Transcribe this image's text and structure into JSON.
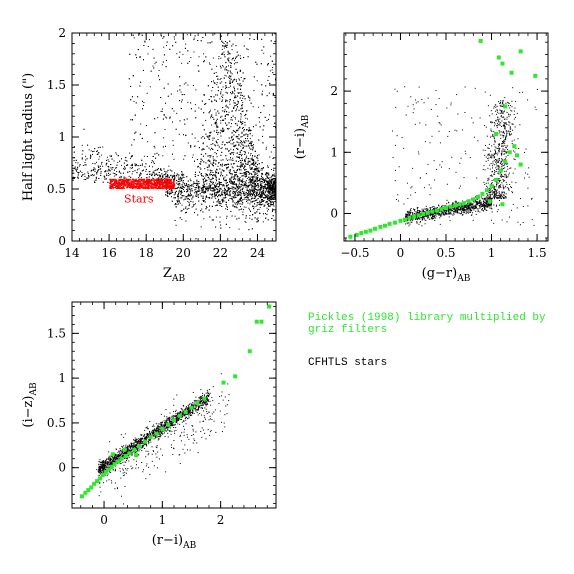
{
  "legend": {
    "pickles_text": "Pickles (1998) library multiplied by griz filters",
    "pickles_color": "#2ee82e",
    "cfhtls_text": "CFHTLS stars",
    "cfhtls_color": "#000000"
  },
  "chart_data": [
    {
      "type": "scatter",
      "title": "",
      "xlabel": "Z",
      "xlabel_sub": "AB",
      "ylabel": "Half light radius (\")",
      "xlim": [
        14,
        25
      ],
      "ylim": [
        0,
        2
      ],
      "xticks": [
        14,
        16,
        18,
        20,
        22,
        24
      ],
      "yticks": [
        0,
        0.5,
        1,
        1.5,
        2
      ],
      "ytick_labels": [
        "0",
        "0.5",
        "1",
        "1.5",
        "2"
      ],
      "annotation": {
        "text": "Stars",
        "x": 17.6,
        "y": 0.37,
        "color": "#ff0000"
      },
      "stars_box": {
        "x": [
          16.0,
          19.5
        ],
        "y": [
          0.51,
          0.6
        ],
        "color": "#ff0000"
      },
      "series": [
        {
          "color": "#000000",
          "description": "galaxies+stars cloud"
        },
        {
          "color": "#ff0000",
          "description": "stars"
        }
      ]
    },
    {
      "type": "scatter",
      "title": "",
      "xlabel": "(g−r)",
      "xlabel_sub": "AB",
      "ylabel": "(r−i)",
      "ylabel_sub": "AB",
      "xlim": [
        -0.62,
        1.62
      ],
      "ylim": [
        -0.45,
        2.95
      ],
      "xticks": [
        -0.5,
        0,
        0.5,
        1,
        1.5
      ],
      "xtick_labels": [
        "−0.5",
        "0",
        "0.5",
        "1",
        "1.5"
      ],
      "yticks": [
        0,
        1,
        2
      ],
      "series": [
        {
          "name": "CFHTLS stars",
          "color": "#000000"
        },
        {
          "name": "Pickles",
          "color": "#2ee82e",
          "points": [
            [
              -0.55,
              -0.38
            ],
            [
              -0.48,
              -0.35
            ],
            [
              -0.43,
              -0.32
            ],
            [
              -0.38,
              -0.3
            ],
            [
              -0.33,
              -0.28
            ],
            [
              -0.28,
              -0.25
            ],
            [
              -0.22,
              -0.22
            ],
            [
              -0.17,
              -0.2
            ],
            [
              -0.12,
              -0.17
            ],
            [
              -0.06,
              -0.15
            ],
            [
              0.0,
              -0.12
            ],
            [
              0.05,
              -0.1
            ],
            [
              0.1,
              -0.07
            ],
            [
              0.15,
              -0.05
            ],
            [
              0.2,
              -0.03
            ],
            [
              0.25,
              -0.01
            ],
            [
              0.3,
              0.01
            ],
            [
              0.35,
              0.03
            ],
            [
              0.4,
              0.05
            ],
            [
              0.45,
              0.07
            ],
            [
              0.5,
              0.09
            ],
            [
              0.55,
              0.11
            ],
            [
              0.6,
              0.13
            ],
            [
              0.65,
              0.15
            ],
            [
              0.7,
              0.17
            ],
            [
              0.75,
              0.2
            ],
            [
              0.8,
              0.23
            ],
            [
              0.85,
              0.27
            ],
            [
              0.9,
              0.32
            ],
            [
              0.95,
              0.38
            ],
            [
              1.0,
              0.45
            ],
            [
              1.05,
              0.55
            ],
            [
              1.1,
              0.7
            ],
            [
              1.15,
              0.85
            ],
            [
              1.2,
              1.0
            ],
            [
              1.25,
              1.1
            ],
            [
              1.28,
              0.95
            ],
            [
              1.32,
              0.8
            ],
            [
              1.05,
              1.3
            ],
            [
              1.15,
              1.75
            ],
            [
              1.22,
              2.3
            ],
            [
              1.08,
              2.55
            ],
            [
              1.12,
              2.45
            ],
            [
              1.32,
              2.65
            ],
            [
              1.48,
              2.25
            ],
            [
              0.88,
              2.82
            ],
            [
              0.98,
              0.2
            ],
            [
              1.12,
              0.15
            ]
          ]
        }
      ]
    },
    {
      "type": "scatter",
      "title": "",
      "xlabel": "(r−i)",
      "xlabel_sub": "AB",
      "ylabel": "(i−z)",
      "ylabel_sub": "AB",
      "xlim": [
        -0.55,
        2.95
      ],
      "ylim": [
        -0.45,
        1.85
      ],
      "xticks": [
        0,
        1,
        2
      ],
      "yticks": [
        0,
        0.5,
        1,
        1.5
      ],
      "series": [
        {
          "name": "CFHTLS stars",
          "color": "#000000"
        },
        {
          "name": "Pickles",
          "color": "#2ee82e",
          "points": [
            [
              -0.38,
              -0.32
            ],
            [
              -0.32,
              -0.28
            ],
            [
              -0.27,
              -0.25
            ],
            [
              -0.22,
              -0.22
            ],
            [
              -0.17,
              -0.18
            ],
            [
              -0.12,
              -0.15
            ],
            [
              -0.07,
              -0.12
            ],
            [
              -0.02,
              -0.08
            ],
            [
              0.03,
              -0.05
            ],
            [
              0.08,
              -0.02
            ],
            [
              0.13,
              0.01
            ],
            [
              0.18,
              0.04
            ],
            [
              0.24,
              0.07
            ],
            [
              0.3,
              0.1
            ],
            [
              0.37,
              0.13
            ],
            [
              0.44,
              0.16
            ],
            [
              0.52,
              0.2
            ],
            [
              0.6,
              0.24
            ],
            [
              0.7,
              0.29
            ],
            [
              0.8,
              0.34
            ],
            [
              0.9,
              0.38
            ],
            [
              1.0,
              0.43
            ],
            [
              1.1,
              0.48
            ],
            [
              1.2,
              0.53
            ],
            [
              1.3,
              0.58
            ],
            [
              1.4,
              0.62
            ],
            [
              1.5,
              0.67
            ],
            [
              1.6,
              0.72
            ],
            [
              1.72,
              0.77
            ],
            [
              2.05,
              0.95
            ],
            [
              2.25,
              1.02
            ],
            [
              2.5,
              1.3
            ],
            [
              2.62,
              1.63
            ],
            [
              2.7,
              1.63
            ],
            [
              2.83,
              1.8
            ],
            [
              0.35,
              0.2
            ],
            [
              0.55,
              0.14
            ],
            [
              0.15,
              0.15
            ]
          ]
        }
      ]
    }
  ]
}
